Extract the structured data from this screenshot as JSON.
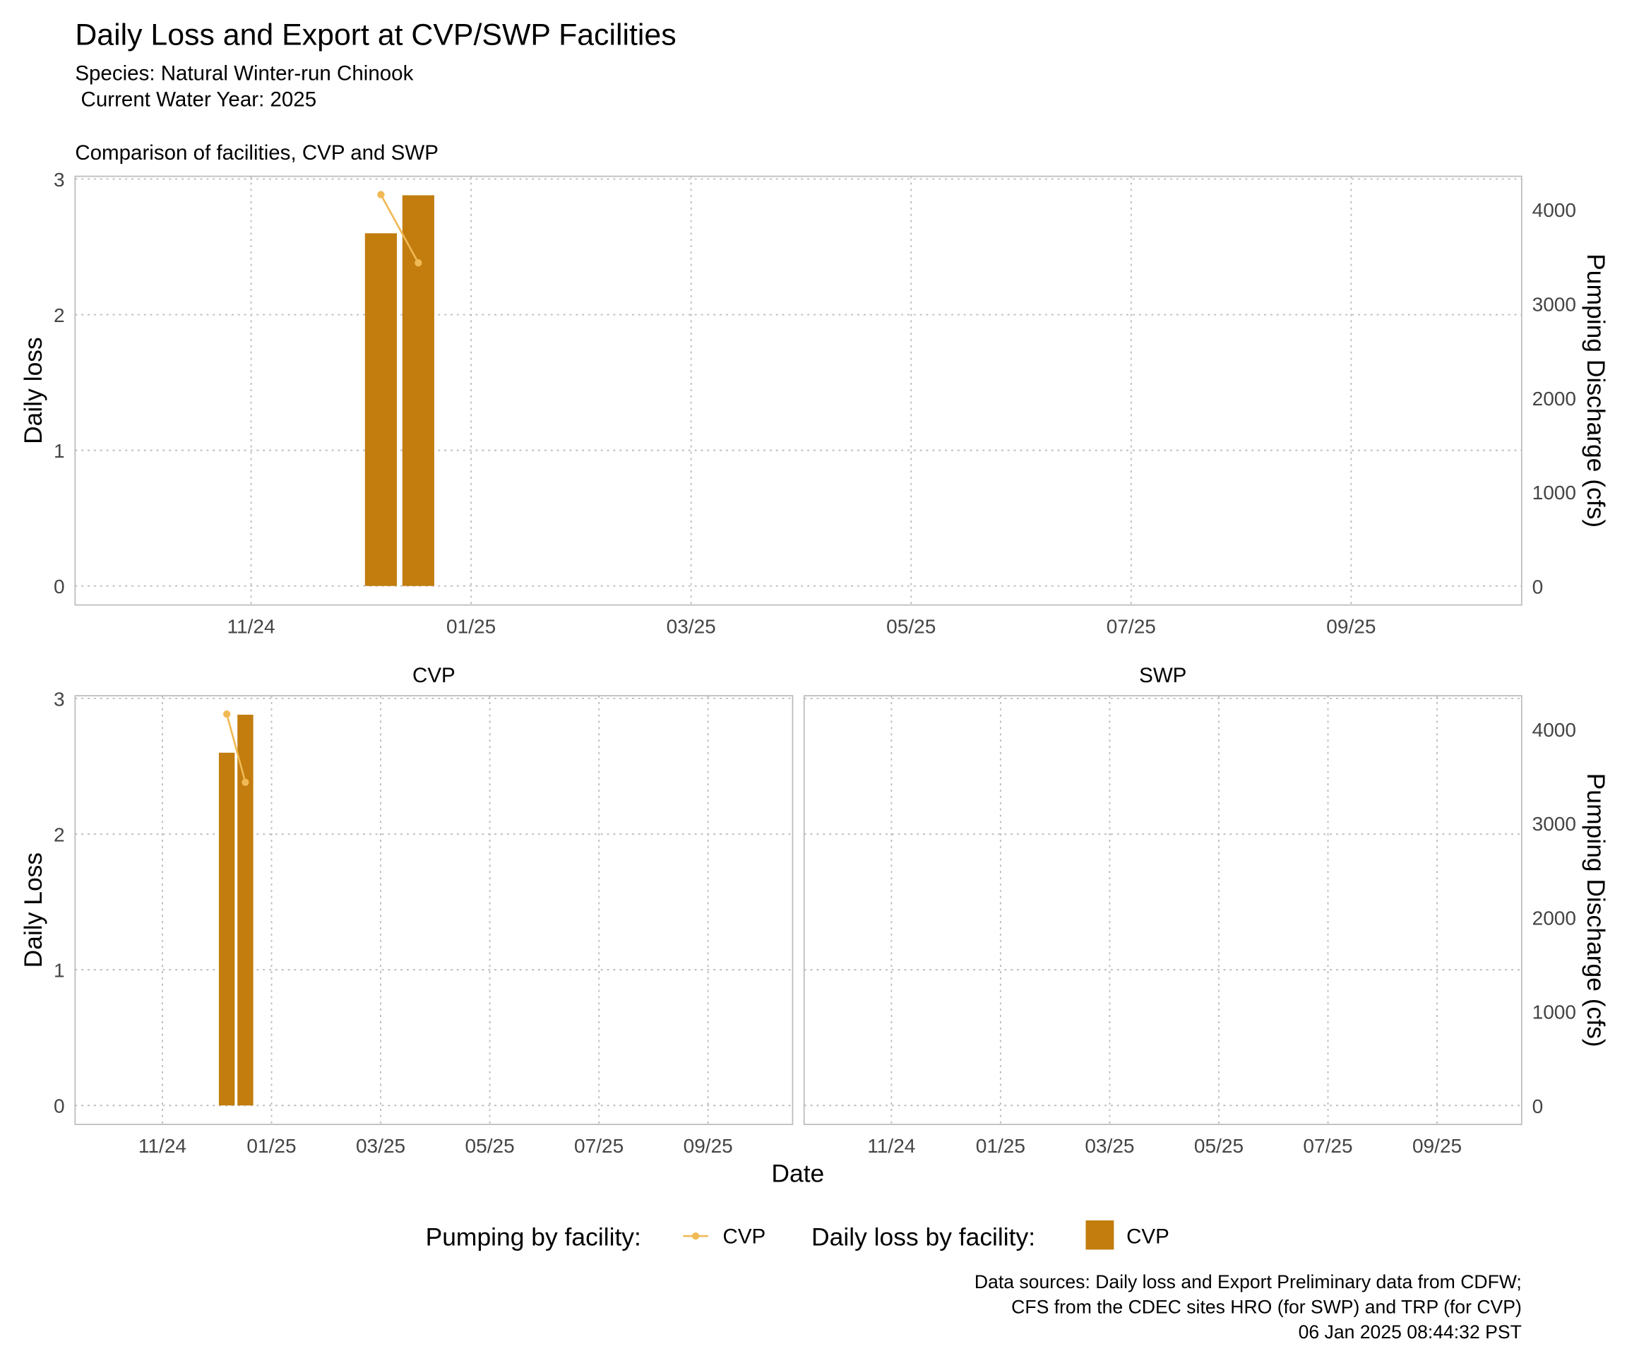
{
  "header": {
    "title": "Daily Loss and Export at CVP/SWP Facilities",
    "subtitle": [
      "Species: Natural Winter-run Chinook",
      " Current Water Year: 2025"
    ]
  },
  "chart_data": [
    {
      "type": "bar_line",
      "title": "Comparison of facilities, CVP and SWP",
      "y_label": "Daily loss",
      "y2_label": "Pumping Discharge (cfs)",
      "y_axis_labels": "both",
      "x": [
        12.18,
        12.52
      ],
      "series": [
        {
          "name": "CVP",
          "color": "#c27d0e",
          "values": [
            2.6,
            2.88
          ]
        },
        {
          "name": "CVP",
          "color": "#f0b955",
          "values": [
            4160,
            3435
          ],
          "axis": "y2",
          "type": "line"
        }
      ],
      "xlim": [
        9.4,
        22.55
      ],
      "xticks": [
        {
          "value": 11,
          "label": "11/24"
        },
        {
          "value": 13,
          "label": "01/25"
        },
        {
          "value": 15,
          "label": "03/25"
        },
        {
          "value": 17,
          "label": "05/25"
        },
        {
          "value": 19,
          "label": "07/25"
        },
        {
          "value": 21,
          "label": "09/25"
        }
      ],
      "ylim": [
        -0.14,
        3.02
      ],
      "yticks": [
        0,
        1,
        2,
        3
      ],
      "y2lim": [
        -200,
        4355
      ],
      "y2ticks": [
        0,
        1000,
        2000,
        3000,
        4000
      ],
      "grid": true
    },
    {
      "type": "bar_line",
      "title": "CVP",
      "y_label": "Daily Loss",
      "y_axis_labels": "left",
      "x": [
        12.18,
        12.52
      ],
      "series": [
        {
          "name": "CVP",
          "color": "#c27d0e",
          "values": [
            2.6,
            2.88
          ]
        },
        {
          "name": "CVP",
          "color": "#f0b955",
          "values": [
            4160,
            3435
          ],
          "axis": "y2",
          "type": "line"
        }
      ],
      "xlim": [
        9.4,
        22.55
      ],
      "xticks": [
        {
          "value": 11,
          "label": "11/24"
        },
        {
          "value": 13,
          "label": "01/25"
        },
        {
          "value": 15,
          "label": "03/25"
        },
        {
          "value": 17,
          "label": "05/25"
        },
        {
          "value": 19,
          "label": "07/25"
        },
        {
          "value": 21,
          "label": "09/25"
        }
      ],
      "ylim": [
        -0.14,
        3.02
      ],
      "yticks": [
        0,
        1,
        2,
        3
      ],
      "y2lim": [
        -200,
        4355
      ],
      "y2ticks": [
        0,
        1000,
        2000,
        3000,
        4000
      ],
      "grid": true
    },
    {
      "type": "bar_line",
      "title": "SWP",
      "y2_label": "Pumping Discharge (cfs)",
      "y_axis_labels": "right",
      "x": [],
      "series": [],
      "xlim": [
        9.4,
        22.55
      ],
      "xticks": [
        {
          "value": 11,
          "label": "11/24"
        },
        {
          "value": 13,
          "label": "01/25"
        },
        {
          "value": 15,
          "label": "03/25"
        },
        {
          "value": 17,
          "label": "05/25"
        },
        {
          "value": 19,
          "label": "07/25"
        },
        {
          "value": 21,
          "label": "09/25"
        }
      ],
      "ylim": [
        -0.14,
        3.02
      ],
      "yticks": [
        0,
        1,
        2,
        3
      ],
      "y2lim": [
        -200,
        4355
      ],
      "y2ticks": [
        0,
        1000,
        2000,
        3000,
        4000
      ],
      "grid": true
    }
  ],
  "x_label": "Date",
  "legend": {
    "line_title": "Pumping by facility:",
    "bar_title": "Daily loss by facility:"
  },
  "footer": [
    "Data sources: Daily loss and Export Preliminary data from CDFW;",
    "CFS from the CDEC sites HRO (for SWP) and TRP (for CVP)",
    "06 Jan 2025 08:44:32 PST"
  ]
}
